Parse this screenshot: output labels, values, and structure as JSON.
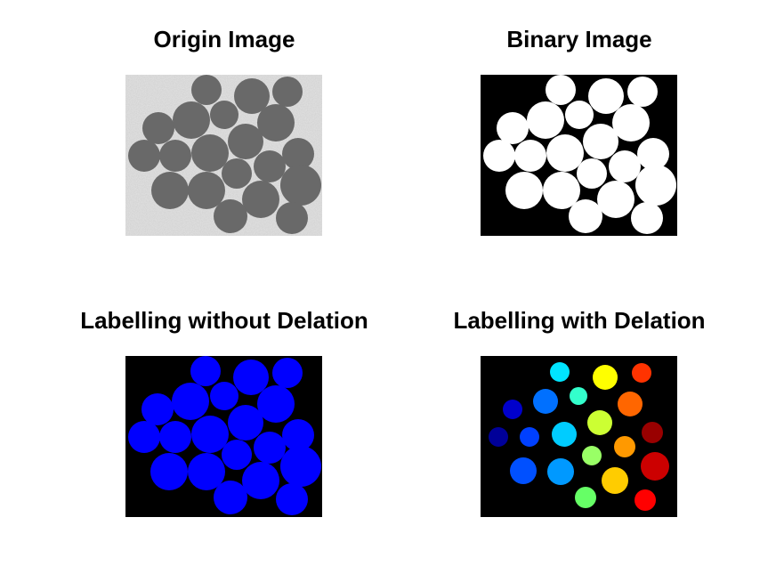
{
  "figure": {
    "panels": [
      {
        "title": "Origin Image"
      },
      {
        "title": "Binary Image"
      },
      {
        "title": "Labelling without Delation"
      },
      {
        "title": "Labelling with Delation"
      }
    ]
  }
}
